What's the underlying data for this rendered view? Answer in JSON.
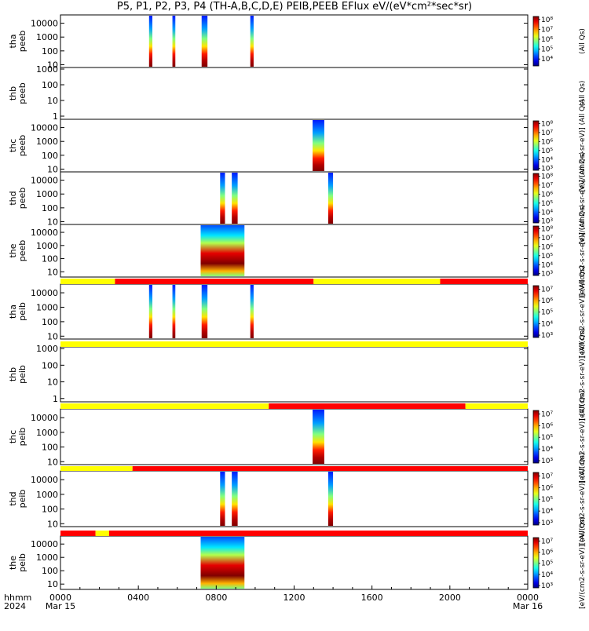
{
  "chart_data": {
    "type": "heatmap",
    "title": "P5, P1, P2, P3, P4 (TH-A,B,C,D,E) PEIB,PEEB EFlux eV/(eV*cm²*sec*sr)",
    "x_label_top": "hhmm",
    "x_label_bottom": "2024",
    "x_ticks": [
      "0000",
      "0400",
      "0800",
      "1200",
      "1600",
      "2000",
      "0000"
    ],
    "x_tick_dates": [
      "Mar 15",
      "",
      "",
      "",
      "",
      "",
      "Mar 16"
    ],
    "x_range_hours": [
      0,
      24
    ],
    "panels": [
      {
        "name": "tha peeb",
        "probe": "tha",
        "ylabel": "peeb",
        "yticks": [
          "10",
          "100",
          "1000",
          "10000"
        ],
        "ylog": [
          0.8,
          4.6
        ],
        "colorbar": {
          "label": "(All Qs)",
          "ticks": [
            "10⁴",
            "10⁵",
            "10⁶",
            "10⁷",
            "10⁸"
          ],
          "range": [
            3.3,
            8.3
          ]
        },
        "bursts": [
          [
            4.55,
            4.72
          ],
          [
            5.75,
            5.9
          ],
          [
            7.25,
            7.55
          ],
          [
            9.75,
            9.92
          ]
        ]
      },
      {
        "name": "thb peeb",
        "probe": "thb",
        "ylabel": "peeb",
        "yticks": [
          "1",
          "10",
          "100",
          "1000"
        ],
        "ylog": [
          -0.2,
          3.1
        ],
        "colorbar": {
          "label": "(All Qs)",
          "ticks": [],
          "range": [
            3,
            8
          ]
        },
        "bursts": []
      },
      {
        "name": "thc peeb",
        "probe": "thc",
        "ylabel": "peeb",
        "yticks": [
          "10",
          "100",
          "1000",
          "10000"
        ],
        "ylog": [
          0.8,
          4.6
        ],
        "colorbar": {
          "label": "[eV/(cm2-s-sr-eV)] (All Qs)",
          "ticks": [
            "10³",
            "10⁴",
            "10⁵",
            "10⁶",
            "10⁷",
            "10⁸"
          ],
          "range": [
            2.8,
            8.3
          ]
        },
        "bursts": [
          [
            12.95,
            13.55
          ]
        ]
      },
      {
        "name": "thd peeb",
        "probe": "thd",
        "ylabel": "peeb",
        "yticks": [
          "10",
          "100",
          "1000",
          "10000"
        ],
        "ylog": [
          0.8,
          4.6
        ],
        "colorbar": {
          "label": "[eV/(cm2-s-sr-eV)] (All Qs)",
          "ticks": [
            "10³",
            "10⁴",
            "10⁵",
            "10⁶",
            "10⁷",
            "10⁸"
          ],
          "range": [
            2.8,
            8.3
          ]
        },
        "bursts": [
          [
            8.2,
            8.45
          ],
          [
            8.8,
            9.1
          ],
          [
            13.75,
            14.0
          ]
        ]
      },
      {
        "name": "the peeb",
        "probe": "the",
        "ylabel": "peeb",
        "yticks": [
          "10",
          "100",
          "1000",
          "10000"
        ],
        "ylog": [
          0.6,
          4.6
        ],
        "colorbar": {
          "label": "[eV/(cm2-s-sr-eV)] (All Qs)",
          "ticks": [
            "10³",
            "10⁴",
            "10⁵",
            "10⁶",
            "10⁷",
            "10⁸"
          ],
          "range": [
            2.8,
            8.3
          ]
        },
        "bursts": [
          [
            7.2,
            9.45
          ]
        ]
      },
      {
        "name": "tha peib",
        "probe": "tha",
        "ylabel": "peib",
        "yticks": [
          "10",
          "100",
          "1000",
          "10000"
        ],
        "ylog": [
          0.8,
          4.6
        ],
        "colorbar": {
          "label": "[eV/(cm2-s-sr-eV)] (All Qs)",
          "ticks": [
            "10³",
            "10⁴",
            "10⁵",
            "10⁶",
            "10⁷"
          ],
          "range": [
            2.8,
            7.3
          ]
        },
        "bursts": [
          [
            4.55,
            4.72
          ],
          [
            5.75,
            5.9
          ],
          [
            7.25,
            7.55
          ],
          [
            9.75,
            9.92
          ]
        ]
      },
      {
        "name": "thb peib",
        "probe": "thb",
        "ylabel": "peib",
        "yticks": [
          "1",
          "10",
          "100",
          "1000"
        ],
        "ylog": [
          -0.2,
          3.1
        ],
        "colorbar": {
          "label": "[eV/(cm2-s-sr-eV)] (All Qs)",
          "ticks": [],
          "range": [
            3,
            7
          ]
        },
        "bursts": []
      },
      {
        "name": "thc peib",
        "probe": "thc",
        "ylabel": "peib",
        "yticks": [
          "10",
          "100",
          "1000",
          "10000"
        ],
        "ylog": [
          0.8,
          4.6
        ],
        "colorbar": {
          "label": "[eV/(cm2-s-sr-eV)] (All Qs)",
          "ticks": [
            "10³",
            "10⁴",
            "10⁵",
            "10⁶",
            "10⁷"
          ],
          "range": [
            2.8,
            7.3
          ]
        },
        "bursts": [
          [
            12.95,
            13.55
          ]
        ]
      },
      {
        "name": "thd peib",
        "probe": "thd",
        "ylabel": "peib",
        "yticks": [
          "10",
          "100",
          "1000",
          "10000"
        ],
        "ylog": [
          0.8,
          4.6
        ],
        "colorbar": {
          "label": "[eV/(cm2-s-sr-eV)] (All Qs)",
          "ticks": [
            "10³",
            "10⁴",
            "10⁵",
            "10⁶",
            "10⁷"
          ],
          "range": [
            2.8,
            7.3
          ]
        },
        "bursts": [
          [
            8.2,
            8.45
          ],
          [
            8.8,
            9.1
          ],
          [
            13.75,
            14.0
          ]
        ]
      },
      {
        "name": "the peib",
        "probe": "the",
        "ylabel": "peib",
        "yticks": [
          "10",
          "100",
          "1000",
          "10000"
        ],
        "ylog": [
          0.6,
          4.6
        ],
        "colorbar": {
          "label": "[eV/(cm2-s-sr-eV)] (All Qs)",
          "ticks": [
            "10³",
            "10⁴",
            "10⁵",
            "10⁶",
            "10⁷"
          ],
          "range": [
            2.8,
            7.3
          ]
        },
        "bursts": [
          [
            7.2,
            9.45
          ]
        ]
      }
    ],
    "status_bars": [
      {
        "after_panel": 4,
        "segments": [
          [
            0,
            2.8,
            "#ffff00"
          ],
          [
            2.8,
            13.0,
            "#ff0000"
          ],
          [
            13.0,
            19.5,
            "#ffff00"
          ],
          [
            19.5,
            24,
            "#ff0000"
          ]
        ]
      },
      {
        "after_panel": 5,
        "segments": [
          [
            0,
            24,
            "#ffff00"
          ]
        ]
      },
      {
        "after_panel": 6,
        "segments": [
          [
            0,
            10.7,
            "#ffff00"
          ],
          [
            10.7,
            20.8,
            "#ff0000"
          ],
          [
            20.8,
            24,
            "#ffff00"
          ]
        ]
      },
      {
        "after_panel": 7,
        "segments": [
          [
            0,
            3.7,
            "#ffff00"
          ],
          [
            3.7,
            24,
            "#ff0000"
          ]
        ]
      },
      {
        "after_panel": 8,
        "segments": [
          [
            0,
            1.8,
            "#ff0000"
          ],
          [
            1.8,
            2.5,
            "#ffff00"
          ],
          [
            2.5,
            24,
            "#ff0000"
          ]
        ]
      }
    ]
  }
}
